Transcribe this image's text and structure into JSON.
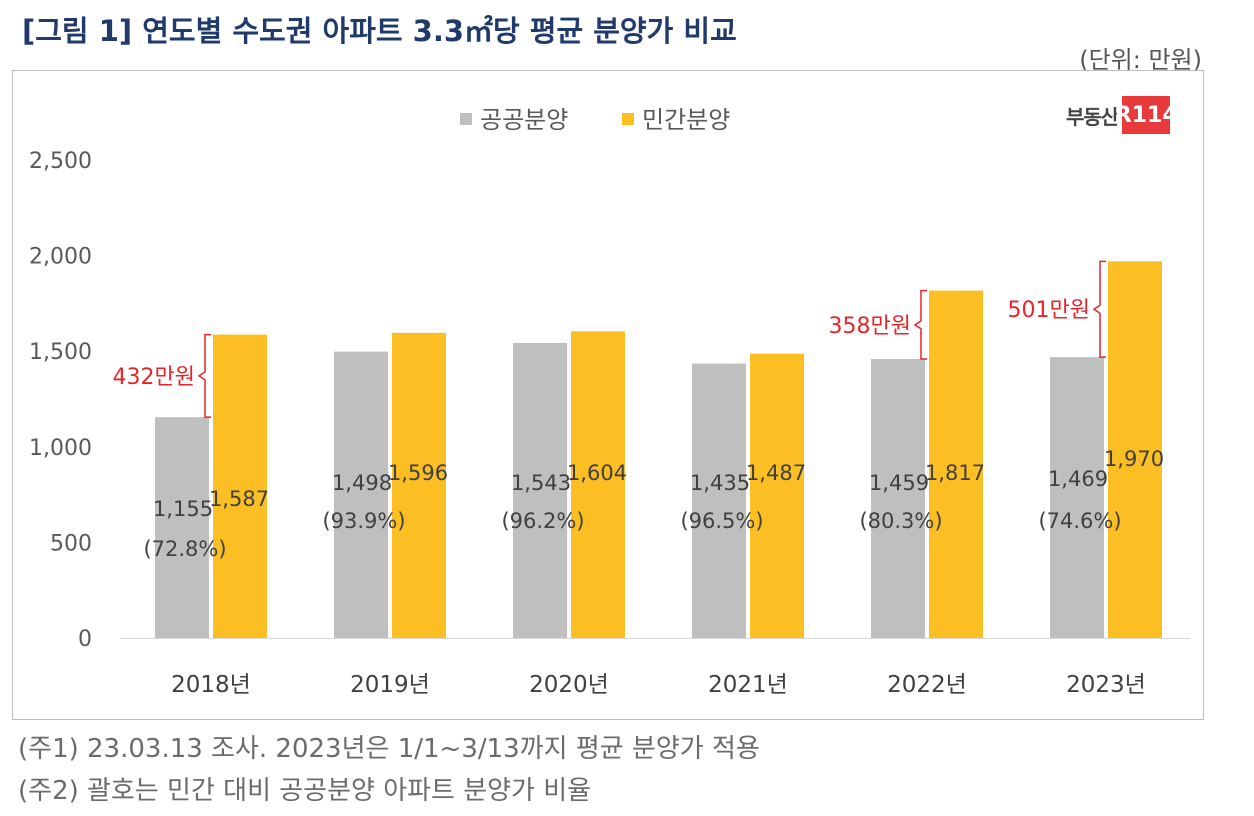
{
  "title": "[그림 1] 연도별 수도권 아파트 3.3㎡당 평균 분양가 비교",
  "unit": "(단위: 만원)",
  "logo": {
    "text": "부동산",
    "badge": "R114"
  },
  "notes": [
    "(주1) 23.03.13 조사. 2023년은 1/1~3/13까지 평균 분양가 적용",
    "(주2) 괄호는 민간 대비 공공분양 아파트 분양가 비율"
  ],
  "colors": {
    "public": "#bfbfbf",
    "private": "#fbbf24",
    "accent": "#e8242b",
    "title": "#1f3a6b"
  },
  "chart_data": {
    "type": "bar",
    "categories": [
      "2018년",
      "2019년",
      "2020년",
      "2021년",
      "2022년",
      "2023년"
    ],
    "series": [
      {
        "name": "공공분양",
        "values": [
          1155,
          1498,
          1543,
          1435,
          1459,
          1469
        ]
      },
      {
        "name": "민간분양",
        "values": [
          1587,
          1596,
          1604,
          1487,
          1817,
          1970
        ]
      }
    ],
    "value_labels": {
      "public": [
        "1,155",
        "1,498",
        "1,543",
        "1,435",
        "1,459",
        "1,469"
      ],
      "private": [
        "1,587",
        "1,596",
        "1,604",
        "1,487",
        "1,817",
        "1,970"
      ]
    },
    "ratios": [
      "(72.8%)",
      "(93.9%)",
      "(96.2%)",
      "(96.5%)",
      "(80.3%)",
      "(74.6%)"
    ],
    "gap_annotations": [
      {
        "category_index": 0,
        "label": "432만원"
      },
      {
        "category_index": 4,
        "label": "358만원"
      },
      {
        "category_index": 5,
        "label": "501만원"
      }
    ],
    "ylim": [
      0,
      2500
    ],
    "yticks": [
      0,
      500,
      1000,
      1500,
      2000,
      2500
    ],
    "ytick_labels": [
      "0",
      "500",
      "1,000",
      "1,500",
      "2,000",
      "2,500"
    ],
    "legend_position": "top-center"
  }
}
